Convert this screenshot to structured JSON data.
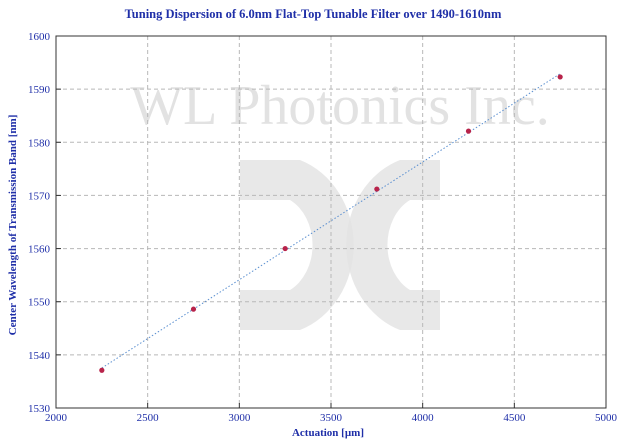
{
  "chart_data": {
    "type": "scatter",
    "title": "Tuning Dispersion of 6.0nm Flat-Top Tunable Filter over 1490-1610nm",
    "xlabel": "Actuation [µm]",
    "ylabel": "Center Wavelength of Transmission Band [nm]",
    "xlim": [
      2000,
      5000
    ],
    "ylim": [
      1530,
      1600
    ],
    "xticks": [
      "2000",
      "2500",
      "3000",
      "3500",
      "4000",
      "4500",
      "5000"
    ],
    "yticks": [
      "1530",
      "1540",
      "1550",
      "1560",
      "1570",
      "1580",
      "1590",
      "1600"
    ],
    "grid": true,
    "trendline": "linear, dotted",
    "series": [
      {
        "x": [
          2250,
          2750,
          3250,
          3750,
          4250,
          4750
        ],
        "y": [
          1537.1,
          1548.6,
          1560.0,
          1571.2,
          1582.1,
          1592.3
        ]
      }
    ],
    "watermark": "WL Photonics Inc.",
    "colors": {
      "text": "#1f2fa8",
      "marker": "#b8234a",
      "trendline": "#5a8fd0",
      "grid": "#b8b8b8",
      "watermark": "#e2e2e2"
    }
  }
}
